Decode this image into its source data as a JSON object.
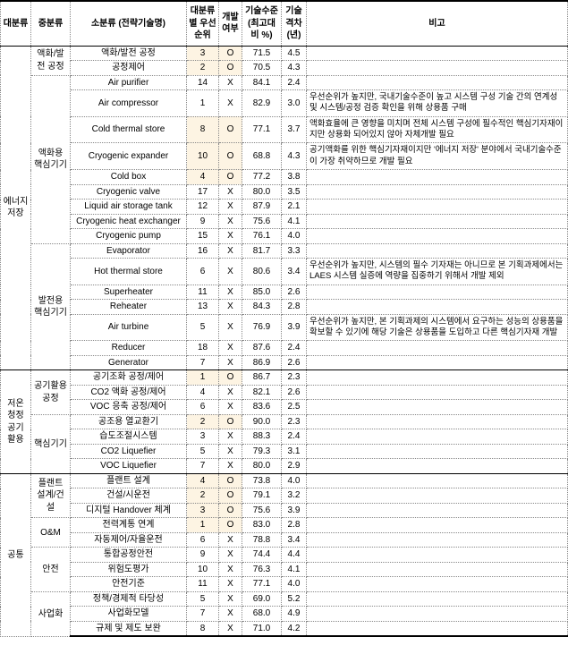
{
  "header": {
    "l1": "대분류",
    "l2": "중분류",
    "l3": "소분류\n(전략기술명)",
    "pri": "대분류별 우선 순위",
    "dev": "개발 여부",
    "lvl": "기술수준 (최고대비 %)",
    "gap": "기술 격차 (년)",
    "rem": "비고"
  },
  "sec": [
    {
      "l1": "에너지 저장",
      "groups": [
        {
          "l2": "액화/발전 공정",
          "rows": [
            {
              "l3": "액화/발전 공정",
              "pri": "3",
              "dev": "O",
              "lvl": "71.5",
              "gap": "4.5",
              "hl": true,
              "rem": ""
            },
            {
              "l3": "공정제어",
              "pri": "2",
              "dev": "O",
              "lvl": "70.5",
              "gap": "4.3",
              "hl": true,
              "rem": ""
            }
          ]
        },
        {
          "l2": "액화용 핵심기기",
          "rows": [
            {
              "l3": "Air purifier",
              "pri": "14",
              "dev": "X",
              "lvl": "84.1",
              "gap": "2.4",
              "rem": ""
            },
            {
              "l3": "Air compressor",
              "pri": "1",
              "dev": "X",
              "lvl": "82.9",
              "gap": "3.0",
              "rem": "우선순위가 높지만, 국내기술수준이 높고 시스템 구성 기술 간의 연계성 및 시스템/공정 검증 확인을 위해 상용품 구매"
            },
            {
              "l3": "Cold thermal store",
              "pri": "8",
              "dev": "O",
              "lvl": "77.1",
              "gap": "3.7",
              "hl": true,
              "rem": "액화효율에 큰 영향을 미치며 전체 시스템 구성에 필수적인 핵심기자재이지만 상용화 되어있지 않아 자체개발 필요"
            },
            {
              "l3": "Cryogenic expander",
              "pri": "10",
              "dev": "O",
              "lvl": "68.8",
              "gap": "4.3",
              "hl": true,
              "rem": "공기액화를 위한 핵심기자재이지만 '에너지 저장' 분야에서 국내기술수준이 가장 취약하므로 개발 필요"
            },
            {
              "l3": "Cold box",
              "pri": "4",
              "dev": "O",
              "lvl": "77.2",
              "gap": "3.8",
              "hl": true,
              "rem": ""
            },
            {
              "l3": "Cryogenic valve",
              "pri": "17",
              "dev": "X",
              "lvl": "80.0",
              "gap": "3.5",
              "rem": ""
            },
            {
              "l3": "Liquid air storage tank",
              "pri": "12",
              "dev": "X",
              "lvl": "87.9",
              "gap": "2.1",
              "rem": ""
            },
            {
              "l3": "Cryogenic heat exchanger",
              "pri": "9",
              "dev": "X",
              "lvl": "75.6",
              "gap": "4.1",
              "rem": ""
            },
            {
              "l3": "Cryogenic pump",
              "pri": "15",
              "dev": "X",
              "lvl": "76.1",
              "gap": "4.0",
              "rem": ""
            }
          ]
        },
        {
          "l2": "발전용 핵심기기",
          "rows": [
            {
              "l3": "Evaporator",
              "pri": "16",
              "dev": "X",
              "lvl": "81.7",
              "gap": "3.3",
              "rem": ""
            },
            {
              "l3": "Hot thermal store",
              "pri": "6",
              "dev": "X",
              "lvl": "80.6",
              "gap": "3.4",
              "rem": "우선순위가 높지만, 시스템의 필수 기자재는 아니므로 본 기획과제에서는 LAES 시스템 실증에 역량을 집중하기 위해서 개발 제외"
            },
            {
              "l3": "Superheater",
              "pri": "11",
              "dev": "X",
              "lvl": "85.0",
              "gap": "2.6",
              "rem": ""
            },
            {
              "l3": "Reheater",
              "pri": "13",
              "dev": "X",
              "lvl": "84.3",
              "gap": "2.8",
              "rem": ""
            },
            {
              "l3": "Air turbine",
              "pri": "5",
              "dev": "X",
              "lvl": "76.9",
              "gap": "3.9",
              "rem": "우선순위가 높지만, 본 기획과제의 시스템에서 요구하는 성능의 상용품을 확보할 수 있기에 해당 기술은 상용품을 도입하고 다른 핵심기자재 개발"
            },
            {
              "l3": "Reducer",
              "pri": "18",
              "dev": "X",
              "lvl": "87.6",
              "gap": "2.4",
              "rem": ""
            },
            {
              "l3": "Generator",
              "pri": "7",
              "dev": "X",
              "lvl": "86.9",
              "gap": "2.6",
              "rem": ""
            }
          ]
        }
      ]
    },
    {
      "l1": "저온 청정 공기 활용",
      "groups": [
        {
          "l2": "공기활용 공정",
          "rows": [
            {
              "l3": "공기조화 공정/제어",
              "pri": "1",
              "dev": "O",
              "lvl": "86.7",
              "gap": "2.3",
              "hl": true,
              "rem": ""
            },
            {
              "l3": "CO2 액화 공정/제어",
              "pri": "4",
              "dev": "X",
              "lvl": "82.1",
              "gap": "2.6",
              "rem": ""
            },
            {
              "l3": "VOC 응축 공정/제어",
              "pri": "6",
              "dev": "X",
              "lvl": "83.6",
              "gap": "2.5",
              "rem": ""
            }
          ]
        },
        {
          "l2": "핵심기기",
          "rows": [
            {
              "l3": "공조용 열교환기",
              "pri": "2",
              "dev": "O",
              "lvl": "90.0",
              "gap": "2.3",
              "hl": true,
              "rem": ""
            },
            {
              "l3": "습도조절시스템",
              "pri": "3",
              "dev": "X",
              "lvl": "88.3",
              "gap": "2.4",
              "rem": ""
            },
            {
              "l3": "CO2 Liquefier",
              "pri": "5",
              "dev": "X",
              "lvl": "79.3",
              "gap": "3.1",
              "rem": ""
            },
            {
              "l3": "VOC Liquefier",
              "pri": "7",
              "dev": "X",
              "lvl": "80.0",
              "gap": "2.9",
              "rem": ""
            }
          ]
        }
      ]
    },
    {
      "l1": "공통",
      "groups": [
        {
          "l2": "플랜트 설계/건설",
          "rows": [
            {
              "l3": "플랜트 설계",
              "pri": "4",
              "dev": "O",
              "lvl": "73.8",
              "gap": "4.0",
              "hl": true,
              "rem": ""
            },
            {
              "l3": "건설/시운전",
              "pri": "2",
              "dev": "O",
              "lvl": "79.1",
              "gap": "3.2",
              "hl": true,
              "rem": ""
            },
            {
              "l3": "디지털 Handover 체계",
              "pri": "3",
              "dev": "O",
              "lvl": "75.6",
              "gap": "3.9",
              "hl": true,
              "rem": ""
            }
          ]
        },
        {
          "l2": "O&M",
          "rows": [
            {
              "l3": "전력계통 연계",
              "pri": "1",
              "dev": "O",
              "lvl": "83.0",
              "gap": "2.8",
              "hl": true,
              "rem": ""
            },
            {
              "l3": "자동제어/자율운전",
              "pri": "6",
              "dev": "X",
              "lvl": "78.8",
              "gap": "3.4",
              "rem": ""
            }
          ]
        },
        {
          "l2": "안전",
          "rows": [
            {
              "l3": "통합공정안전",
              "pri": "9",
              "dev": "X",
              "lvl": "74.4",
              "gap": "4.4",
              "rem": ""
            },
            {
              "l3": "위험도평가",
              "pri": "10",
              "dev": "X",
              "lvl": "76.3",
              "gap": "4.1",
              "rem": ""
            },
            {
              "l3": "안전기준",
              "pri": "11",
              "dev": "X",
              "lvl": "77.1",
              "gap": "4.0",
              "rem": ""
            }
          ]
        },
        {
          "l2": "사업화",
          "rows": [
            {
              "l3": "정책/경제적 타당성",
              "pri": "5",
              "dev": "X",
              "lvl": "69.0",
              "gap": "5.2",
              "rem": ""
            },
            {
              "l3": "사업화모델",
              "pri": "7",
              "dev": "X",
              "lvl": "68.0",
              "gap": "4.9",
              "rem": ""
            },
            {
              "l3": "규제 및 제도 보완",
              "pri": "8",
              "dev": "X",
              "lvl": "71.0",
              "gap": "4.2",
              "rem": ""
            }
          ]
        }
      ]
    }
  ]
}
